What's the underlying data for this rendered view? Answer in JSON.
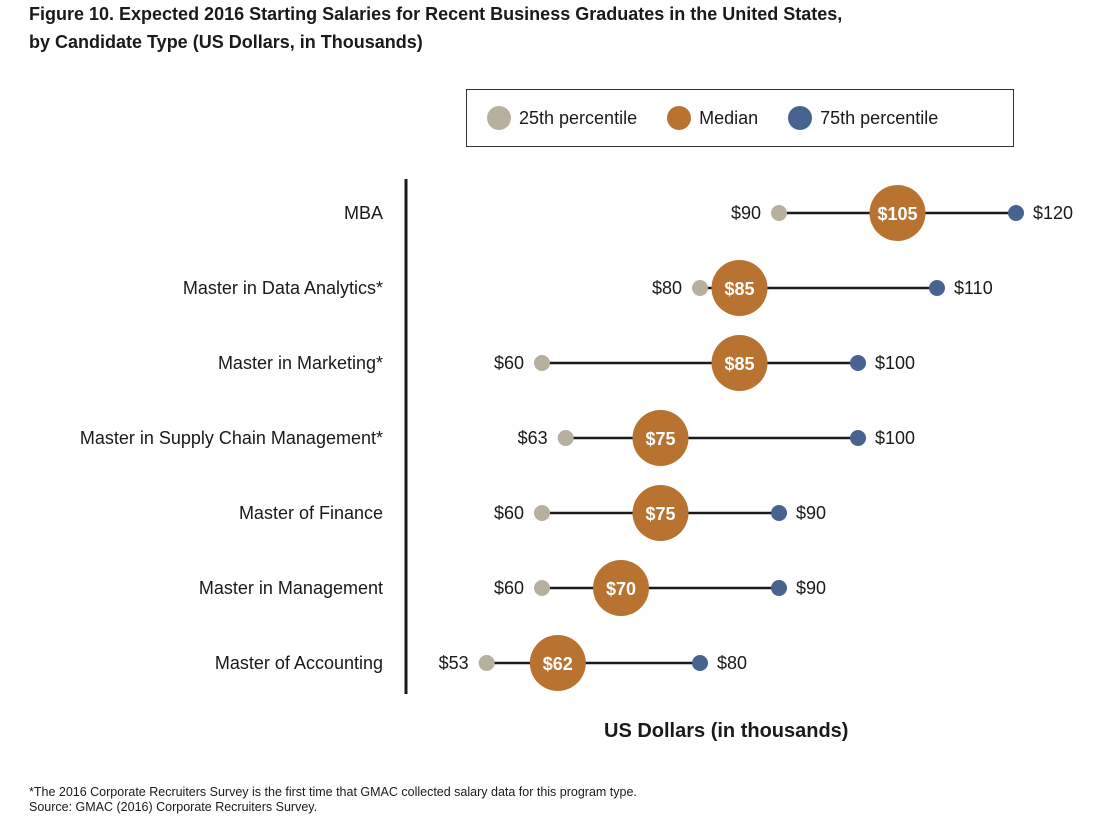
{
  "title_line1": "Figure 10. Expected 2016 Starting Salaries for Recent Business Graduates in the United States,",
  "title_line2": "by Candidate Type (US Dollars, in Thousands)",
  "footnote": "*The 2016 Corporate Recruiters Survey is the first time that GMAC collected salary data for this program type.",
  "source": "Source: GMAC (2016) Corporate Recruiters Survey.",
  "colors": {
    "p25": "#b8b09e",
    "median": "#b87330",
    "p75": "#46648f",
    "line": "#1a1a1a"
  },
  "chart_data": {
    "type": "dumbbell",
    "title": "Figure 10. Expected 2016 Starting Salaries for Recent Business Graduates in the United States, by Candidate Type (US Dollars, in Thousands)",
    "xlabel": "US Dollars (in thousands)",
    "ylabel": "",
    "legend": {
      "position": "top-right",
      "entries": [
        "25th percentile",
        "Median",
        "75th percentile"
      ]
    },
    "value_prefix": "$",
    "categories": [
      "MBA",
      "Master in Data Analytics*",
      "Master in Marketing*",
      "Master in Supply Chain Management*",
      "Master of Finance",
      "Master in Management",
      "Master of Accounting"
    ],
    "series": [
      {
        "name": "25th percentile",
        "values": [
          90,
          80,
          60,
          63,
          60,
          60,
          53
        ]
      },
      {
        "name": "Median",
        "values": [
          105,
          85,
          85,
          75,
          75,
          70,
          62
        ]
      },
      {
        "name": "75th percentile",
        "values": [
          120,
          110,
          100,
          100,
          90,
          90,
          80
        ]
      }
    ],
    "grid": false
  }
}
